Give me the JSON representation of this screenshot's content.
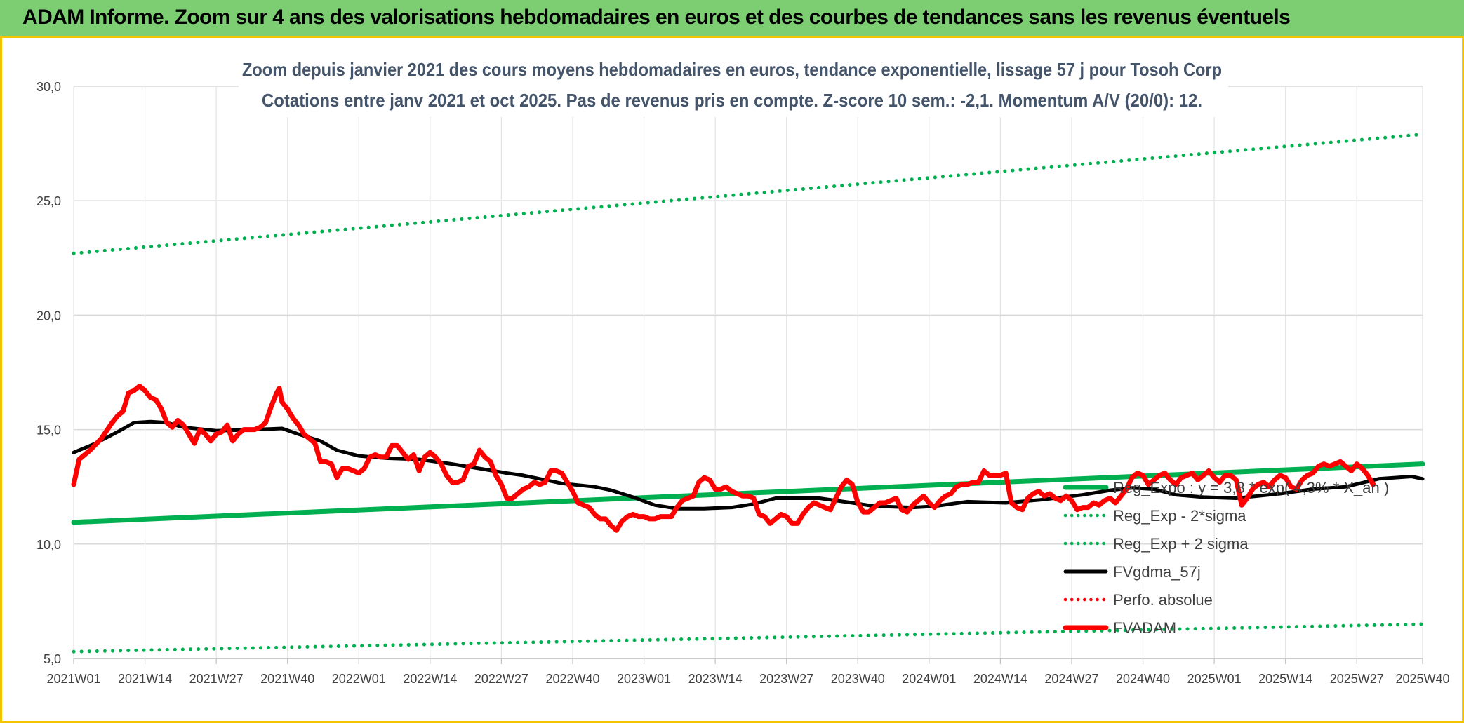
{
  "banner": {
    "title": "ADAM Informe. Zoom sur 4 ans des valorisations hebdomadaires en euros et des courbes de tendances sans les revenus éventuels"
  },
  "colors": {
    "green": "#00b050",
    "red": "#ff0000",
    "black": "#000000",
    "banner": "#7dce73",
    "border": "#f2c500",
    "grid": "#d9d9d9"
  },
  "chart_data": {
    "type": "line",
    "title": "Zoom depuis janvier 2021 des cours moyens hebdomadaires en euros, tendance exponentielle, lissage 57 j pour Tosoh Corp",
    "subtitle": "Cotations entre janv 2021 et oct 2025. Pas de revenus pris en compte. Z-score 10 sem.: -2,1. Momentum A/V (20/0): 12.",
    "xlabel": "",
    "ylabel": "",
    "ylim": [
      5,
      30
    ],
    "yticks": [
      "5,0",
      "10,0",
      "15,0",
      "20,0",
      "25,0",
      "30,0"
    ],
    "x_tick_labels": [
      "2021W01",
      "2021W14",
      "2021W27",
      "2021W40",
      "2022W01",
      "2022W14",
      "2022W27",
      "2022W40",
      "2023W01",
      "2023W14",
      "2023W27",
      "2023W40",
      "2024W01",
      "2024W14",
      "2024W27",
      "2024W40",
      "2025W01",
      "2025W14",
      "2025W27",
      "2025W40"
    ],
    "grid": true,
    "legend_position": "bottom-right",
    "series": [
      {
        "name": "Reg_Expo : y = 3,8 * exp( 4,3% * X_an )",
        "style": "solid",
        "color": "#00b050",
        "points": [
          [
            0,
            10.95
          ],
          [
            246,
            13.5
          ]
        ]
      },
      {
        "name": "Reg_Exp - 2*sigma",
        "style": "dotted",
        "color": "#00b050",
        "points": [
          [
            0,
            5.3
          ],
          [
            246,
            6.5
          ]
        ]
      },
      {
        "name": "Reg_Exp + 2 sigma",
        "style": "dotted",
        "color": "#00b050",
        "points": [
          [
            0,
            22.7
          ],
          [
            246,
            27.9
          ]
        ]
      },
      {
        "name": "FVgdma_57j",
        "style": "solid",
        "color": "#000000",
        "points": [
          [
            0,
            14.0
          ],
          [
            4,
            14.4
          ],
          [
            8,
            14.9
          ],
          [
            11,
            15.3
          ],
          [
            14,
            15.35
          ],
          [
            17,
            15.3
          ],
          [
            20,
            15.1
          ],
          [
            26,
            14.95
          ],
          [
            33,
            15.0
          ],
          [
            38,
            15.05
          ],
          [
            41,
            14.8
          ],
          [
            45,
            14.5
          ],
          [
            48,
            14.1
          ],
          [
            52,
            13.85
          ],
          [
            57,
            13.75
          ],
          [
            63,
            13.7
          ],
          [
            69,
            13.5
          ],
          [
            74,
            13.3
          ],
          [
            79,
            13.1
          ],
          [
            82,
            13.0
          ],
          [
            85,
            12.85
          ],
          [
            89,
            12.65
          ],
          [
            95,
            12.5
          ],
          [
            98,
            12.35
          ],
          [
            102,
            12.05
          ],
          [
            106,
            11.7
          ],
          [
            110,
            11.55
          ],
          [
            115,
            11.55
          ],
          [
            120,
            11.6
          ],
          [
            124,
            11.75
          ],
          [
            128,
            12.0
          ],
          [
            136,
            12.0
          ],
          [
            142,
            11.8
          ],
          [
            146,
            11.65
          ],
          [
            153,
            11.6
          ],
          [
            157,
            11.65
          ],
          [
            163,
            11.85
          ],
          [
            170,
            11.8
          ],
          [
            177,
            11.95
          ],
          [
            184,
            12.15
          ],
          [
            189,
            12.35
          ],
          [
            193,
            12.45
          ],
          [
            197,
            12.4
          ],
          [
            201,
            12.15
          ],
          [
            206,
            12.05
          ],
          [
            212,
            12.0
          ],
          [
            220,
            12.2
          ],
          [
            226,
            12.4
          ],
          [
            232,
            12.5
          ],
          [
            238,
            12.85
          ],
          [
            244,
            12.95
          ],
          [
            246,
            12.85
          ]
        ]
      },
      {
        "name": "Perfo. absolue",
        "style": "dotted",
        "color": "#ff0000",
        "points": []
      },
      {
        "name": "FVADAM",
        "style": "solid",
        "color": "#ff0000",
        "points": [
          [
            0,
            12.6
          ],
          [
            1,
            13.7
          ],
          [
            3,
            14.1
          ],
          [
            5,
            14.6
          ],
          [
            7,
            15.3
          ],
          [
            8,
            15.6
          ],
          [
            9,
            15.8
          ],
          [
            10,
            16.6
          ],
          [
            11,
            16.7
          ],
          [
            12,
            16.9
          ],
          [
            13,
            16.7
          ],
          [
            14,
            16.4
          ],
          [
            15,
            16.3
          ],
          [
            16,
            15.9
          ],
          [
            17,
            15.3
          ],
          [
            18,
            15.1
          ],
          [
            19,
            15.4
          ],
          [
            20,
            15.2
          ],
          [
            21,
            14.8
          ],
          [
            22,
            14.4
          ],
          [
            23,
            15.0
          ],
          [
            24,
            14.8
          ],
          [
            25,
            14.5
          ],
          [
            26,
            14.8
          ],
          [
            27,
            14.9
          ],
          [
            28,
            15.2
          ],
          [
            29,
            14.5
          ],
          [
            30,
            14.8
          ],
          [
            31,
            15.0
          ],
          [
            33,
            15.0
          ],
          [
            34,
            15.1
          ],
          [
            35,
            15.3
          ],
          [
            36,
            16.0
          ],
          [
            37,
            16.6
          ],
          [
            37.5,
            16.8
          ],
          [
            38,
            16.2
          ],
          [
            39,
            15.9
          ],
          [
            40,
            15.5
          ],
          [
            41,
            15.2
          ],
          [
            42,
            14.8
          ],
          [
            43,
            14.6
          ],
          [
            44,
            14.4
          ],
          [
            45,
            13.6
          ],
          [
            46,
            13.6
          ],
          [
            47,
            13.5
          ],
          [
            48,
            12.9
          ],
          [
            49,
            13.3
          ],
          [
            50,
            13.3
          ],
          [
            51,
            13.2
          ],
          [
            52,
            13.1
          ],
          [
            53,
            13.3
          ],
          [
            54,
            13.8
          ],
          [
            55,
            13.9
          ],
          [
            56,
            13.8
          ],
          [
            57,
            13.8
          ],
          [
            58,
            14.3
          ],
          [
            59,
            14.3
          ],
          [
            60,
            14.0
          ],
          [
            61,
            13.7
          ],
          [
            62,
            13.9
          ],
          [
            63,
            13.2
          ],
          [
            64,
            13.8
          ],
          [
            65,
            14.0
          ],
          [
            66,
            13.8
          ],
          [
            67,
            13.5
          ],
          [
            68,
            13.0
          ],
          [
            69,
            12.7
          ],
          [
            70,
            12.7
          ],
          [
            71,
            12.8
          ],
          [
            72,
            13.4
          ],
          [
            73,
            13.5
          ],
          [
            74,
            14.1
          ],
          [
            75,
            13.8
          ],
          [
            76,
            13.6
          ],
          [
            77,
            13.0
          ],
          [
            78,
            12.6
          ],
          [
            79,
            12.0
          ],
          [
            80,
            12.0
          ],
          [
            81,
            12.2
          ],
          [
            82,
            12.4
          ],
          [
            83,
            12.5
          ],
          [
            84,
            12.7
          ],
          [
            85,
            12.6
          ],
          [
            86,
            12.7
          ],
          [
            87,
            13.2
          ],
          [
            88,
            13.2
          ],
          [
            89,
            13.1
          ],
          [
            90,
            12.7
          ],
          [
            91,
            12.3
          ],
          [
            92,
            11.8
          ],
          [
            93,
            11.7
          ],
          [
            94,
            11.6
          ],
          [
            95,
            11.3
          ],
          [
            96,
            11.1
          ],
          [
            97,
            11.1
          ],
          [
            98,
            10.8
          ],
          [
            99,
            10.6
          ],
          [
            100,
            11.0
          ],
          [
            101,
            11.2
          ],
          [
            102,
            11.3
          ],
          [
            103,
            11.2
          ],
          [
            104,
            11.2
          ],
          [
            105,
            11.1
          ],
          [
            106,
            11.1
          ],
          [
            107,
            11.2
          ],
          [
            108,
            11.2
          ],
          [
            109,
            11.2
          ],
          [
            110,
            11.6
          ],
          [
            111,
            11.9
          ],
          [
            112,
            12.0
          ],
          [
            113,
            12.1
          ],
          [
            114,
            12.7
          ],
          [
            115,
            12.9
          ],
          [
            116,
            12.8
          ],
          [
            117,
            12.4
          ],
          [
            118,
            12.4
          ],
          [
            119,
            12.5
          ],
          [
            120,
            12.3
          ],
          [
            121,
            12.2
          ],
          [
            122,
            12.1
          ],
          [
            123,
            12.1
          ],
          [
            124,
            12.0
          ],
          [
            125,
            11.3
          ],
          [
            126,
            11.2
          ],
          [
            127,
            10.9
          ],
          [
            128,
            11.1
          ],
          [
            129,
            11.3
          ],
          [
            130,
            11.2
          ],
          [
            131,
            10.9
          ],
          [
            132,
            10.9
          ],
          [
            133,
            11.3
          ],
          [
            134,
            11.6
          ],
          [
            135,
            11.8
          ],
          [
            136,
            11.7
          ],
          [
            137,
            11.6
          ],
          [
            138,
            11.5
          ],
          [
            139,
            12.0
          ],
          [
            140,
            12.5
          ],
          [
            141,
            12.8
          ],
          [
            142,
            12.6
          ],
          [
            143,
            11.8
          ],
          [
            144,
            11.4
          ],
          [
            145,
            11.4
          ],
          [
            146,
            11.6
          ],
          [
            147,
            11.8
          ],
          [
            148,
            11.8
          ],
          [
            149,
            11.9
          ],
          [
            150,
            12.0
          ],
          [
            151,
            11.5
          ],
          [
            152,
            11.4
          ],
          [
            153,
            11.7
          ],
          [
            154,
            11.9
          ],
          [
            155,
            12.1
          ],
          [
            156,
            11.8
          ],
          [
            157,
            11.6
          ],
          [
            158,
            11.9
          ],
          [
            159,
            12.1
          ],
          [
            160,
            12.2
          ],
          [
            161,
            12.5
          ],
          [
            162,
            12.6
          ],
          [
            163,
            12.6
          ],
          [
            164,
            12.7
          ],
          [
            165,
            12.7
          ],
          [
            166,
            13.2
          ],
          [
            167,
            13.0
          ],
          [
            168,
            13.0
          ],
          [
            169,
            13.0
          ],
          [
            170,
            13.1
          ],
          [
            171,
            11.8
          ],
          [
            172,
            11.6
          ],
          [
            173,
            11.5
          ],
          [
            174,
            12.0
          ],
          [
            175,
            12.2
          ],
          [
            176,
            12.3
          ],
          [
            177,
            12.1
          ],
          [
            178,
            12.2
          ],
          [
            179,
            12.0
          ],
          [
            180,
            11.9
          ],
          [
            181,
            12.1
          ],
          [
            182,
            11.9
          ],
          [
            183,
            11.5
          ],
          [
            184,
            11.6
          ],
          [
            185,
            11.6
          ],
          [
            186,
            11.8
          ],
          [
            187,
            11.7
          ],
          [
            188,
            11.9
          ],
          [
            189,
            12.0
          ],
          [
            190,
            11.8
          ],
          [
            191,
            12.1
          ],
          [
            192,
            12.4
          ],
          [
            193,
            12.9
          ],
          [
            194,
            13.1
          ],
          [
            195,
            13.0
          ],
          [
            196,
            12.6
          ],
          [
            197,
            12.8
          ],
          [
            198,
            13.0
          ],
          [
            199,
            13.1
          ],
          [
            200,
            12.8
          ],
          [
            201,
            12.6
          ],
          [
            202,
            12.9
          ],
          [
            203,
            13.0
          ],
          [
            204,
            13.1
          ],
          [
            205,
            12.8
          ],
          [
            206,
            13.0
          ],
          [
            207,
            13.2
          ],
          [
            208,
            12.9
          ],
          [
            209,
            12.7
          ],
          [
            210,
            13.0
          ],
          [
            211,
            13.0
          ],
          [
            212,
            12.8
          ],
          [
            213,
            11.7
          ],
          [
            214,
            12.0
          ],
          [
            215,
            12.4
          ],
          [
            216,
            12.6
          ],
          [
            217,
            12.7
          ],
          [
            218,
            12.5
          ],
          [
            219,
            12.8
          ],
          [
            220,
            13.0
          ],
          [
            221,
            12.9
          ],
          [
            222,
            12.5
          ],
          [
            223,
            12.4
          ],
          [
            224,
            12.8
          ],
          [
            225,
            13.0
          ],
          [
            226,
            13.1
          ],
          [
            227,
            13.4
          ],
          [
            228,
            13.5
          ],
          [
            229,
            13.4
          ],
          [
            230,
            13.5
          ],
          [
            231,
            13.6
          ],
          [
            232,
            13.4
          ],
          [
            233,
            13.2
          ],
          [
            234,
            13.5
          ],
          [
            235,
            13.3
          ],
          [
            236,
            13.0
          ],
          [
            237,
            12.6
          ]
        ]
      }
    ]
  }
}
